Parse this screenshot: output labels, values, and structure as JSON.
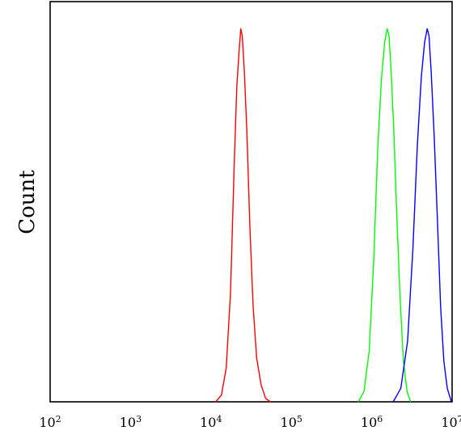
{
  "chart_data": {
    "type": "line",
    "title": "",
    "xlabel": "",
    "ylabel": "Count",
    "x_scale": "log",
    "xlim": [
      100,
      10000000
    ],
    "ylim": [
      0,
      1.18
    ],
    "grid": false,
    "legend": "none",
    "x_ticks": [
      {
        "base": "10",
        "exp": "2"
      },
      {
        "base": "10",
        "exp": "3"
      },
      {
        "base": "10",
        "exp": "4"
      },
      {
        "base": "10",
        "exp": "5"
      },
      {
        "base": "10",
        "exp": "6"
      },
      {
        "base": "10",
        "exp": "7"
      }
    ],
    "series": [
      {
        "color": "#ff0000",
        "x": [
          11500,
          13500,
          15500,
          17500,
          19500,
          21000,
          22500,
          23500,
          24500,
          26000,
          28000,
          30500,
          33500,
          37000,
          42000,
          48000,
          55000
        ],
        "y": [
          0,
          0.02,
          0.1,
          0.32,
          0.7,
          0.93,
          1.04,
          1.1,
          1.08,
          0.98,
          0.8,
          0.52,
          0.28,
          0.13,
          0.05,
          0.01,
          0
        ]
      },
      {
        "color": "#00ff00",
        "x": [
          680000,
          800000,
          930000,
          1060000,
          1190000,
          1320000,
          1450000,
          1560000,
          1640000,
          1740000,
          1880000,
          2050000,
          2260000,
          2480000,
          2750000,
          3050000
        ],
        "y": [
          0,
          0.03,
          0.15,
          0.42,
          0.75,
          0.95,
          1.06,
          1.1,
          1.08,
          0.98,
          0.8,
          0.55,
          0.3,
          0.12,
          0.03,
          0
        ]
      },
      {
        "color": "#0000ff",
        "x": [
          1850000,
          2300000,
          2800000,
          3250000,
          3700000,
          4150000,
          4550000,
          4900000,
          5150000,
          5500000,
          6000000,
          6600000,
          7200000,
          7900000,
          8700000,
          9800000
        ],
        "y": [
          0,
          0.04,
          0.18,
          0.45,
          0.76,
          0.96,
          1.06,
          1.1,
          1.08,
          0.97,
          0.78,
          0.52,
          0.28,
          0.12,
          0.04,
          0
        ]
      }
    ]
  }
}
